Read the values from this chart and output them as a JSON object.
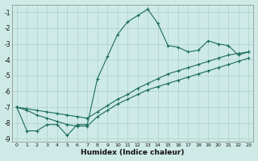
{
  "xlabel": "Humidex (Indice chaleur)",
  "background_color": "#ceeae6",
  "grid_color": "#aecfcc",
  "line_color": "#1a6b5e",
  "xlim": [
    -0.5,
    23.5
  ],
  "ylim": [
    -9.2,
    -0.5
  ],
  "yticks": [
    -9,
    -8,
    -7,
    -6,
    -5,
    -4,
    -3,
    -2,
    -1
  ],
  "xticks": [
    0,
    1,
    2,
    3,
    4,
    5,
    6,
    7,
    8,
    9,
    10,
    11,
    12,
    13,
    14,
    15,
    16,
    17,
    18,
    19,
    20,
    21,
    22,
    23
  ],
  "line1_x": [
    0,
    1,
    2,
    3,
    4,
    5,
    6,
    7,
    8,
    9,
    10,
    11,
    12,
    13,
    14,
    15,
    16,
    17,
    18,
    19,
    20,
    21,
    22,
    23
  ],
  "line1_y": [
    -7.0,
    -8.5,
    -8.5,
    -8.1,
    -8.1,
    -8.8,
    -8.1,
    -8.1,
    -5.2,
    -3.8,
    -2.4,
    -1.6,
    -1.2,
    -0.8,
    -1.7,
    -3.1,
    -3.2,
    -3.5,
    -3.4,
    -2.8,
    -3.0,
    -3.1,
    -3.7,
    -3.5
  ],
  "line2_x": [
    0,
    1,
    2,
    3,
    4,
    5,
    6,
    7,
    8,
    9,
    10,
    11,
    12,
    13,
    14,
    15,
    16,
    17,
    18,
    19,
    20,
    21,
    22,
    23
  ],
  "line2_y": [
    -7.0,
    -7.1,
    -7.2,
    -7.3,
    -7.4,
    -7.5,
    -7.6,
    -7.7,
    -7.3,
    -6.9,
    -6.5,
    -6.2,
    -5.8,
    -5.5,
    -5.2,
    -4.9,
    -4.7,
    -4.5,
    -4.3,
    -4.1,
    -3.9,
    -3.7,
    -3.6,
    -3.5
  ],
  "line3_x": [
    0,
    1,
    2,
    3,
    4,
    5,
    6,
    7,
    8,
    9,
    10,
    11,
    12,
    13,
    14,
    15,
    16,
    17,
    18,
    19,
    20,
    21,
    22,
    23
  ],
  "line3_y": [
    -7.0,
    -7.2,
    -7.5,
    -7.7,
    -7.9,
    -8.1,
    -8.2,
    -8.2,
    -7.6,
    -7.2,
    -6.8,
    -6.5,
    -6.2,
    -5.9,
    -5.7,
    -5.5,
    -5.3,
    -5.1,
    -4.9,
    -4.7,
    -4.5,
    -4.3,
    -4.1,
    -3.9
  ]
}
